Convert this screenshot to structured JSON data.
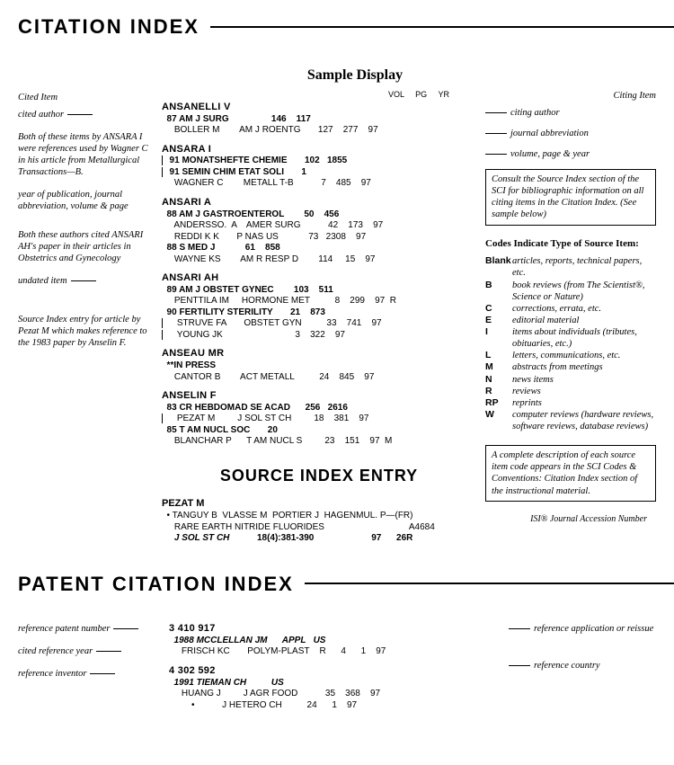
{
  "title_citation": "CITATION INDEX",
  "title_patent": "PATENT CITATION INDEX",
  "sample_display": "Sample Display",
  "cited_item_label": "Cited Item",
  "citing_item_label": "Citing Item",
  "col_headers": "VOL     PG     YR",
  "left_annotations": {
    "cited_author": "cited author",
    "ansara_note": "Both of these items by ANSARA I were references used by Wagner C in his article from Metallurgical Transactions—B.",
    "year_pub": "year of publication, journal abbreviation, volume & page",
    "ansari_note": "Both these authors cited ANSARI AH's paper in their articles in Obstetrics and Gynecology",
    "undated": "undated item",
    "source_note": "Source Index entry for article by Pezat M which makes reference to the 1983 paper by Anselin F."
  },
  "right_annotations": {
    "citing_author": "citing author",
    "journal_abbrev": "journal abbreviation",
    "vol_pg_yr": "volume, page & year",
    "isi": "ISI® Journal Accession Number"
  },
  "info_box_1": "Consult the Source Index section of the SCI for bibliographic information on all citing items in the Citation Index. (See sample below)",
  "info_box_2": "A complete description of each source item code appears in the SCI Codes & Conventions: Citation Index section of the instructional material.",
  "codes_title": "Codes Indicate Type of Source Item:",
  "codes": [
    {
      "c": "Blank",
      "d": "articles, reports, technical papers, etc."
    },
    {
      "c": "B",
      "d": "book reviews (from The Scientist®, Science or Nature)"
    },
    {
      "c": "C",
      "d": "corrections, errata, etc."
    },
    {
      "c": "E",
      "d": "editorial material"
    },
    {
      "c": "I",
      "d": "items about individuals (tributes, obituaries, etc.)"
    },
    {
      "c": "L",
      "d": "letters, communications, etc."
    },
    {
      "c": "M",
      "d": "abstracts from meetings"
    },
    {
      "c": "N",
      "d": "news items"
    },
    {
      "c": "R",
      "d": "reviews"
    },
    {
      "c": "RP",
      "d": "reprints"
    },
    {
      "c": "W",
      "d": "computer reviews (hardware reviews, software reviews, database reviews)"
    }
  ],
  "entries": [
    {
      "author": "ANSANELLI V",
      "refs": [
        {
          "line": "87 AM J SURG                 146    117"
        },
        {
          "cite": "     BOLLER M        AM J ROENTG       127    277    97"
        }
      ]
    },
    {
      "author": "ANSARA I",
      "refs": [
        {
          "line": "91 MONATSHEFTE CHEMIE       102   1855",
          "boxed": true
        },
        {
          "line": "91 SEMIN CHIM ETAT SOLI       1",
          "boxed": true
        },
        {
          "cite": "     WAGNER C        METALL T-B           7    485    97"
        }
      ]
    },
    {
      "author": "ANSARI A",
      "refs": [
        {
          "line": "88 AM J GASTROENTEROL        50    456"
        },
        {
          "cite": "     ANDERSSO.  A    AMER SURG           42    173    97"
        },
        {
          "cite": "     REDDI K K       P NAS US            73   2308    97"
        },
        {
          "line": "88 S MED J            61    858"
        },
        {
          "cite": "     WAYNE KS        AM R RESP D        114     15    97"
        }
      ]
    },
    {
      "author": "ANSARI AH",
      "refs": [
        {
          "line": "89 AM J OBSTET GYNEC        103    511"
        },
        {
          "cite": "     PENTTILA IM     HORMONE MET          8    299    97  R"
        },
        {
          "line": "90 FERTILITY STERILITY       21    873"
        },
        {
          "cite": "     STRUVE FA       OBSTET GYN          33    741    97",
          "boxed": true
        },
        {
          "cite": "     YOUNG JK                             3    322    97",
          "boxed": true
        }
      ]
    },
    {
      "author": "ANSEAU MR",
      "refs": [
        {
          "line": "**IN PRESS"
        },
        {
          "cite": "     CANTOR B        ACT METALL          24    845    97"
        }
      ]
    },
    {
      "author": "ANSELIN F",
      "refs": [
        {
          "line": "83 CR HEBDOMAD SE ACAD      256   2616"
        },
        {
          "cite": "     PEZAT M         J SOL ST CH         18    381    97",
          "boxed": true
        },
        {
          "line": "85 T AM NUCL SOC       20"
        },
        {
          "cite": "     BLANCHAR P      T AM NUCL S         23    151    97  M"
        }
      ]
    }
  ],
  "source_index_title": "SOURCE INDEX ENTRY",
  "source_entry": {
    "name": "PEZAT M",
    "line1": "  • TANGUY B  VLASSE M  PORTIER J  HAGENMUL. P—(FR)",
    "line2": "     RARE EARTH NITRIDE FLUORIDES                                  A4684",
    "line3_journal": "     J SOL ST CH",
    "line3_rest": "           18(4):381-390                       97      26R"
  },
  "patent_left": {
    "ref_patent_num": "reference patent number",
    "cited_ref_year": "cited reference year",
    "ref_inventor": "reference inventor"
  },
  "patent_right": {
    "ref_app": "reference application or reissue",
    "ref_country": "reference country"
  },
  "patents": [
    {
      "num": "3 410 917",
      "line": "1988 MCCLELLAN JM      APPL   US",
      "cite": "     FRISCH KC       POLYM-PLAST    R      4      1    97"
    },
    {
      "num": "4 302 592",
      "line": "1991 TIEMAN CH          US",
      "cite1": "     HUANG J         J AGR FOOD           35    368    97",
      "cite2": "         •           J HETERO CH          24      1    97"
    }
  ]
}
